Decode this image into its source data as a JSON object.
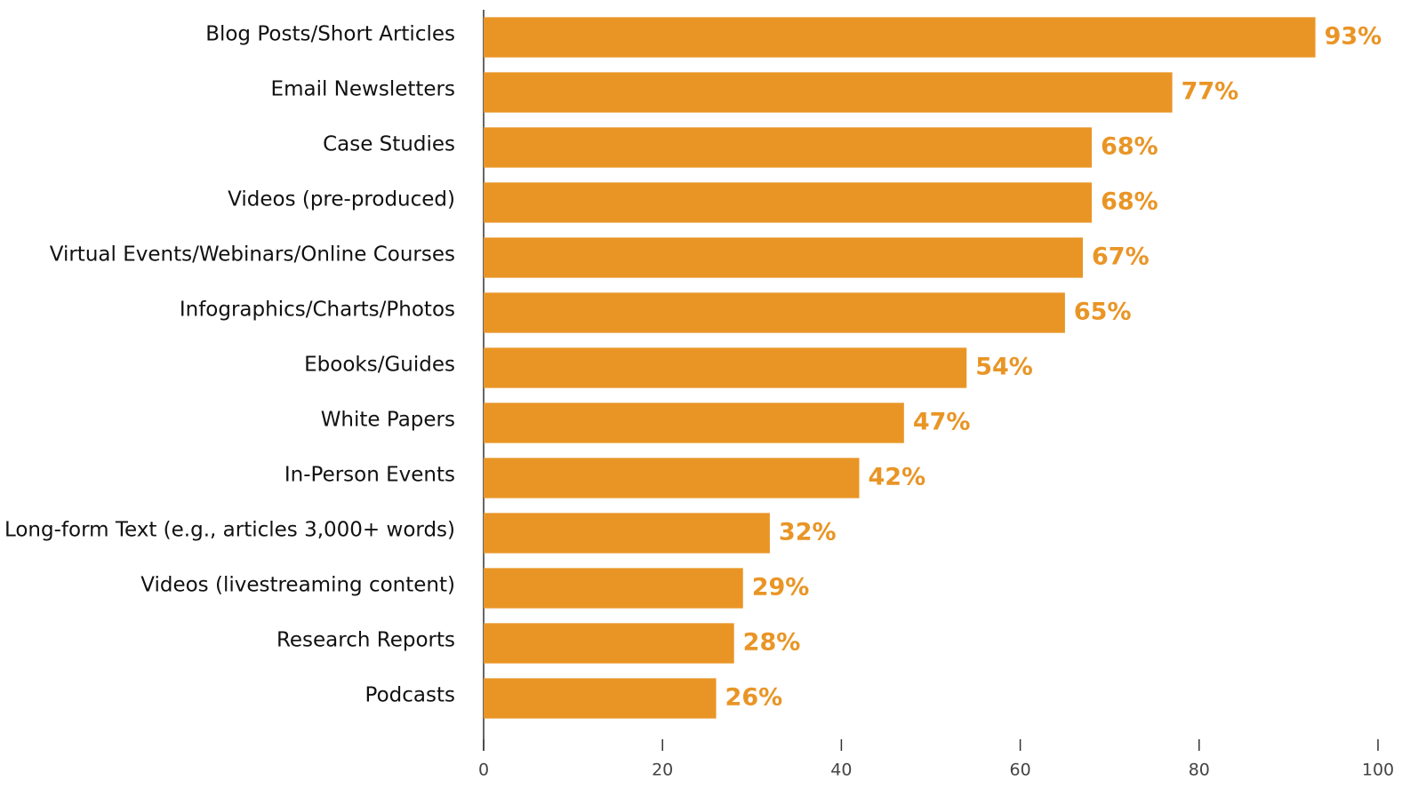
{
  "chart_data": {
    "type": "bar",
    "orientation": "horizontal",
    "categories": [
      "Blog Posts/Short Articles",
      "Email Newsletters",
      "Case Studies",
      "Videos (pre-produced)",
      "Virtual Events/Webinars/Online Courses",
      "Infographics/Charts/Photos",
      "Ebooks/Guides",
      "White Papers",
      "In-Person Events",
      "Long-form Text (e.g., articles 3,000+ words)",
      "Videos (livestreaming content)",
      "Research Reports",
      "Podcasts"
    ],
    "values": [
      93,
      77,
      68,
      68,
      67,
      65,
      54,
      47,
      42,
      32,
      29,
      28,
      26
    ],
    "value_labels": [
      "93%",
      "77%",
      "68%",
      "68%",
      "67%",
      "65%",
      "54%",
      "47%",
      "42%",
      "32%",
      "29%",
      "28%",
      "26%"
    ],
    "color": "#e99526",
    "xlim": [
      0,
      100
    ],
    "xticks": [
      0,
      20,
      40,
      60,
      80,
      100
    ],
    "grid": false
  }
}
